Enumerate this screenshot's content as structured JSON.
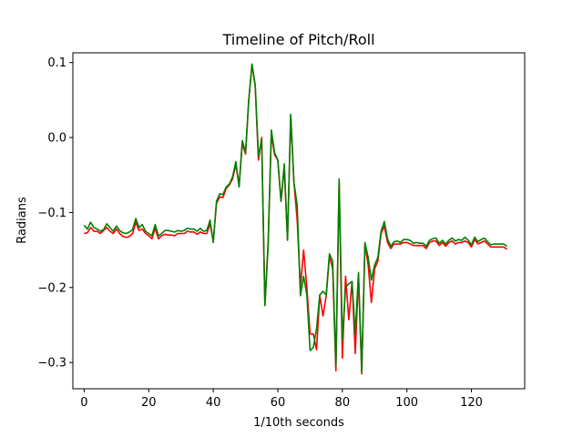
{
  "chart_data": {
    "type": "line",
    "title": "Timeline of Pitch/Roll",
    "xlabel": "1/10th seconds",
    "ylabel": "Radians",
    "xlim": [
      -3.5,
      136.5
    ],
    "ylim": [
      -0.335,
      0.113
    ],
    "xticks": [
      0,
      20,
      40,
      60,
      80,
      100,
      120
    ],
    "yticks": [
      -0.3,
      -0.2,
      -0.1,
      0.0,
      0.1
    ],
    "ytick_labels": [
      "−0.3",
      "−0.2",
      "−0.1",
      "0.0",
      "0.1"
    ],
    "grid": false,
    "legend": "none",
    "x": [
      0,
      1,
      2,
      3,
      4,
      5,
      6,
      7,
      8,
      9,
      10,
      11,
      12,
      13,
      14,
      15,
      16,
      17,
      18,
      19,
      20,
      21,
      22,
      23,
      24,
      25,
      26,
      27,
      28,
      29,
      30,
      31,
      32,
      33,
      34,
      35,
      36,
      37,
      38,
      39,
      40,
      41,
      42,
      43,
      44,
      45,
      46,
      47,
      48,
      49,
      50,
      51,
      52,
      53,
      54,
      55,
      56,
      57,
      58,
      59,
      60,
      61,
      62,
      63,
      64,
      65,
      66,
      67,
      68,
      69,
      70,
      71,
      72,
      73,
      74,
      75,
      76,
      77,
      78,
      79,
      80,
      81,
      82,
      83,
      84,
      85,
      86,
      87,
      88,
      89,
      90,
      91,
      92,
      93,
      94,
      95,
      96,
      97,
      98,
      99,
      100,
      101,
      102,
      103,
      104,
      105,
      106,
      107,
      108,
      109,
      110,
      111,
      112,
      113,
      114,
      115,
      116,
      117,
      118,
      119,
      120,
      121,
      122,
      123,
      124,
      125,
      126,
      127,
      128,
      129,
      130,
      131
    ],
    "series": [
      {
        "color": "#ff0000",
        "values": [
          -0.128,
          -0.127,
          -0.12,
          -0.125,
          -0.125,
          -0.128,
          -0.124,
          -0.12,
          -0.125,
          -0.128,
          -0.122,
          -0.128,
          -0.132,
          -0.133,
          -0.132,
          -0.128,
          -0.113,
          -0.124,
          -0.122,
          -0.128,
          -0.131,
          -0.135,
          -0.121,
          -0.135,
          -0.131,
          -0.129,
          -0.13,
          -0.13,
          -0.131,
          -0.128,
          -0.128,
          -0.128,
          -0.125,
          -0.126,
          -0.126,
          -0.129,
          -0.126,
          -0.128,
          -0.128,
          -0.115,
          -0.138,
          -0.088,
          -0.079,
          -0.08,
          -0.068,
          -0.063,
          -0.055,
          -0.036,
          -0.064,
          -0.008,
          -0.022,
          0.05,
          0.097,
          0.068,
          -0.03,
          0.0,
          -0.224,
          -0.14,
          0.005,
          -0.023,
          -0.03,
          -0.085,
          -0.04,
          -0.136,
          0.029,
          -0.06,
          -0.11,
          -0.2,
          -0.15,
          -0.2,
          -0.262,
          -0.262,
          -0.283,
          -0.21,
          -0.238,
          -0.211,
          -0.158,
          -0.175,
          -0.311,
          -0.06,
          -0.294,
          -0.185,
          -0.243,
          -0.192,
          -0.288,
          -0.185,
          -0.315,
          -0.142,
          -0.17,
          -0.22,
          -0.175,
          -0.165,
          -0.128,
          -0.118,
          -0.14,
          -0.148,
          -0.142,
          -0.142,
          -0.142,
          -0.14,
          -0.14,
          -0.142,
          -0.144,
          -0.144,
          -0.144,
          -0.144,
          -0.148,
          -0.14,
          -0.138,
          -0.138,
          -0.144,
          -0.14,
          -0.145,
          -0.14,
          -0.138,
          -0.142,
          -0.14,
          -0.14,
          -0.138,
          -0.14,
          -0.146,
          -0.136,
          -0.142,
          -0.14,
          -0.138,
          -0.142,
          -0.146,
          -0.146,
          -0.146,
          -0.146,
          -0.146,
          -0.149
        ]
      },
      {
        "color": "#008000",
        "values": [
          -0.117,
          -0.122,
          -0.113,
          -0.12,
          -0.122,
          -0.125,
          -0.123,
          -0.115,
          -0.12,
          -0.125,
          -0.118,
          -0.124,
          -0.127,
          -0.128,
          -0.126,
          -0.123,
          -0.108,
          -0.12,
          -0.116,
          -0.125,
          -0.128,
          -0.131,
          -0.116,
          -0.131,
          -0.128,
          -0.124,
          -0.124,
          -0.125,
          -0.126,
          -0.124,
          -0.125,
          -0.124,
          -0.121,
          -0.122,
          -0.122,
          -0.125,
          -0.121,
          -0.125,
          -0.124,
          -0.11,
          -0.14,
          -0.085,
          -0.075,
          -0.076,
          -0.066,
          -0.062,
          -0.052,
          -0.032,
          -0.066,
          -0.004,
          -0.02,
          0.05,
          0.098,
          0.07,
          -0.025,
          -0.003,
          -0.224,
          -0.145,
          0.01,
          -0.02,
          -0.03,
          -0.085,
          -0.035,
          -0.137,
          0.031,
          -0.06,
          -0.09,
          -0.211,
          -0.185,
          -0.21,
          -0.284,
          -0.28,
          -0.255,
          -0.21,
          -0.205,
          -0.21,
          -0.155,
          -0.165,
          -0.305,
          -0.055,
          -0.27,
          -0.2,
          -0.195,
          -0.192,
          -0.262,
          -0.18,
          -0.312,
          -0.14,
          -0.16,
          -0.19,
          -0.17,
          -0.16,
          -0.125,
          -0.112,
          -0.135,
          -0.145,
          -0.139,
          -0.138,
          -0.14,
          -0.136,
          -0.136,
          -0.137,
          -0.141,
          -0.14,
          -0.141,
          -0.141,
          -0.145,
          -0.137,
          -0.135,
          -0.134,
          -0.141,
          -0.137,
          -0.142,
          -0.137,
          -0.134,
          -0.138,
          -0.136,
          -0.137,
          -0.133,
          -0.137,
          -0.143,
          -0.133,
          -0.139,
          -0.136,
          -0.134,
          -0.139,
          -0.143,
          -0.142,
          -0.142,
          -0.142,
          -0.142,
          -0.145
        ]
      }
    ]
  }
}
